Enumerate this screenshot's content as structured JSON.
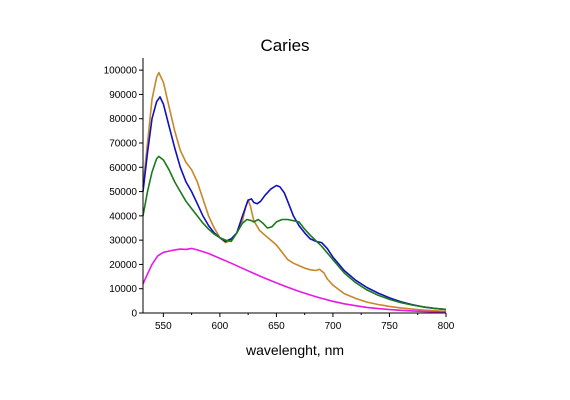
{
  "chart_data": {
    "type": "line",
    "title": "Caries",
    "xlabel": "wavelenght, nm",
    "ylabel": "",
    "xlim": [
      532,
      800
    ],
    "ylim": [
      0,
      105000
    ],
    "x_ticks": [
      550,
      600,
      650,
      700,
      750,
      800
    ],
    "y_ticks": [
      0,
      10000,
      20000,
      30000,
      40000,
      50000,
      60000,
      70000,
      80000,
      90000,
      100000
    ],
    "grid": false,
    "legend": "none",
    "series": [
      {
        "color": "#c8862a",
        "points": [
          [
            532,
            52000
          ],
          [
            536,
            70000
          ],
          [
            540,
            88000
          ],
          [
            544,
            97000
          ],
          [
            546,
            99000
          ],
          [
            550,
            95000
          ],
          [
            555,
            85000
          ],
          [
            560,
            75000
          ],
          [
            565,
            67000
          ],
          [
            570,
            62000
          ],
          [
            575,
            59000
          ],
          [
            580,
            54000
          ],
          [
            585,
            47000
          ],
          [
            590,
            40000
          ],
          [
            595,
            35000
          ],
          [
            600,
            31000
          ],
          [
            605,
            29000
          ],
          [
            610,
            30000
          ],
          [
            615,
            33000
          ],
          [
            620,
            38000
          ],
          [
            623,
            44000
          ],
          [
            625,
            46500
          ],
          [
            627,
            44000
          ],
          [
            630,
            38000
          ],
          [
            635,
            34000
          ],
          [
            640,
            32000
          ],
          [
            645,
            30000
          ],
          [
            650,
            28000
          ],
          [
            655,
            25000
          ],
          [
            660,
            22000
          ],
          [
            665,
            20500
          ],
          [
            670,
            19500
          ],
          [
            675,
            18500
          ],
          [
            680,
            17800
          ],
          [
            685,
            17500
          ],
          [
            688,
            18000
          ],
          [
            692,
            16500
          ],
          [
            695,
            14000
          ],
          [
            700,
            11500
          ],
          [
            710,
            8000
          ],
          [
            720,
            6000
          ],
          [
            730,
            4500
          ],
          [
            740,
            3500
          ],
          [
            750,
            2700
          ],
          [
            760,
            2100
          ],
          [
            770,
            1600
          ],
          [
            780,
            1200
          ],
          [
            790,
            900
          ],
          [
            800,
            700
          ]
        ]
      },
      {
        "color": "#1010c0",
        "points": [
          [
            532,
            50000
          ],
          [
            536,
            66000
          ],
          [
            540,
            80000
          ],
          [
            544,
            87000
          ],
          [
            547,
            89000
          ],
          [
            550,
            86000
          ],
          [
            555,
            77000
          ],
          [
            560,
            68000
          ],
          [
            565,
            60000
          ],
          [
            570,
            54000
          ],
          [
            575,
            50000
          ],
          [
            580,
            45000
          ],
          [
            585,
            40000
          ],
          [
            590,
            36000
          ],
          [
            595,
            33000
          ],
          [
            600,
            31000
          ],
          [
            605,
            29500
          ],
          [
            610,
            30500
          ],
          [
            615,
            33000
          ],
          [
            620,
            40000
          ],
          [
            625,
            46500
          ],
          [
            628,
            47000
          ],
          [
            630,
            45500
          ],
          [
            633,
            45000
          ],
          [
            636,
            46000
          ],
          [
            640,
            48500
          ],
          [
            645,
            51000
          ],
          [
            650,
            52500
          ],
          [
            653,
            52000
          ],
          [
            657,
            49500
          ],
          [
            660,
            46000
          ],
          [
            665,
            40000
          ],
          [
            670,
            36000
          ],
          [
            675,
            33000
          ],
          [
            680,
            30500
          ],
          [
            685,
            29500
          ],
          [
            690,
            29000
          ],
          [
            695,
            26500
          ],
          [
            700,
            23000
          ],
          [
            710,
            17500
          ],
          [
            720,
            13500
          ],
          [
            730,
            10500
          ],
          [
            740,
            8200
          ],
          [
            750,
            6200
          ],
          [
            760,
            4600
          ],
          [
            770,
            3400
          ],
          [
            780,
            2500
          ],
          [
            790,
            1900
          ],
          [
            800,
            1500
          ]
        ]
      },
      {
        "color": "#1a7a1a",
        "points": [
          [
            532,
            40000
          ],
          [
            536,
            50000
          ],
          [
            540,
            58000
          ],
          [
            544,
            63500
          ],
          [
            546,
            64500
          ],
          [
            550,
            63000
          ],
          [
            555,
            59000
          ],
          [
            560,
            54000
          ],
          [
            565,
            50000
          ],
          [
            570,
            46000
          ],
          [
            575,
            43000
          ],
          [
            580,
            40000
          ],
          [
            585,
            37000
          ],
          [
            590,
            34500
          ],
          [
            595,
            32500
          ],
          [
            600,
            31000
          ],
          [
            605,
            30000
          ],
          [
            610,
            29500
          ],
          [
            615,
            33000
          ],
          [
            620,
            37000
          ],
          [
            624,
            38500
          ],
          [
            628,
            38000
          ],
          [
            630,
            37500
          ],
          [
            634,
            38500
          ],
          [
            638,
            37000
          ],
          [
            642,
            35000
          ],
          [
            646,
            35500
          ],
          [
            650,
            37500
          ],
          [
            655,
            38500
          ],
          [
            660,
            38500
          ],
          [
            665,
            38000
          ],
          [
            670,
            37500
          ],
          [
            675,
            34500
          ],
          [
            680,
            32000
          ],
          [
            690,
            27500
          ],
          [
            700,
            22000
          ],
          [
            710,
            16500
          ],
          [
            720,
            12500
          ],
          [
            730,
            9500
          ],
          [
            740,
            7300
          ],
          [
            750,
            5600
          ],
          [
            760,
            4300
          ],
          [
            770,
            3300
          ],
          [
            780,
            2500
          ],
          [
            790,
            1900
          ],
          [
            800,
            1500
          ]
        ]
      },
      {
        "color": "#e818e8",
        "points": [
          [
            532,
            12000
          ],
          [
            536,
            16000
          ],
          [
            540,
            20000
          ],
          [
            545,
            23500
          ],
          [
            550,
            25000
          ],
          [
            555,
            25500
          ],
          [
            560,
            26000
          ],
          [
            565,
            26300
          ],
          [
            570,
            26200
          ],
          [
            575,
            26600
          ],
          [
            580,
            26000
          ],
          [
            585,
            25300
          ],
          [
            590,
            24500
          ],
          [
            600,
            22500
          ],
          [
            610,
            20500
          ],
          [
            620,
            18400
          ],
          [
            630,
            16300
          ],
          [
            640,
            14300
          ],
          [
            650,
            12400
          ],
          [
            660,
            10600
          ],
          [
            670,
            8900
          ],
          [
            680,
            7400
          ],
          [
            690,
            6000
          ],
          [
            700,
            4800
          ],
          [
            710,
            3800
          ],
          [
            720,
            3000
          ],
          [
            730,
            2300
          ],
          [
            740,
            1800
          ],
          [
            750,
            1400
          ],
          [
            760,
            1100
          ],
          [
            770,
            850
          ],
          [
            780,
            650
          ],
          [
            790,
            500
          ],
          [
            800,
            400
          ]
        ]
      }
    ]
  }
}
